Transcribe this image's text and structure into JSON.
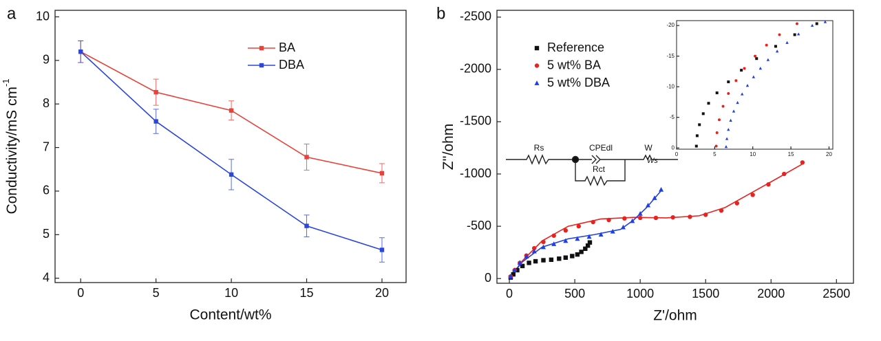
{
  "chart_data": [
    {
      "type": "line",
      "panel_label": "a",
      "xlabel": "Content/wt%",
      "ylabel": "Conductivity/mS cm",
      "ylabel_sup": "-1",
      "x": [
        0,
        5,
        10,
        15,
        20
      ],
      "series": [
        {
          "name": "BA",
          "color": "#e8423a",
          "marker": "square",
          "values": [
            9.2,
            8.27,
            7.85,
            6.78,
            6.41
          ],
          "errors": [
            0.25,
            0.3,
            0.22,
            0.3,
            0.22
          ]
        },
        {
          "name": "DBA",
          "color": "#2b47d8",
          "marker": "square",
          "values": [
            9.2,
            7.6,
            6.38,
            5.2,
            4.65
          ],
          "errors": [
            0.25,
            0.28,
            0.35,
            0.25,
            0.28
          ]
        }
      ],
      "xlim": [
        -1.7,
        21.6
      ],
      "xticks": [
        0,
        5,
        10,
        15,
        20
      ],
      "ylim": [
        3.9,
        10.15
      ],
      "yticks": [
        4,
        5,
        6,
        7,
        8,
        9,
        10
      ],
      "legend": "upper right"
    },
    {
      "type": "scatter",
      "panel_label": "b",
      "xlabel": "Z'/ohm",
      "ylabel": "Z''/ohm",
      "series": [
        {
          "name": "Reference",
          "color": "#111111",
          "marker": "square",
          "x": [
            10,
            30,
            60,
            100,
            150,
            200,
            260,
            320,
            380,
            430,
            480,
            520,
            550,
            580,
            600,
            615
          ],
          "values": [
            -10,
            -40,
            -80,
            -120,
            -150,
            -165,
            -175,
            -180,
            -190,
            -200,
            -215,
            -230,
            -255,
            -285,
            -315,
            -345
          ]
        },
        {
          "name": "5 wt% BA",
          "color": "#e8231f",
          "marker": "circle",
          "x": [
            10,
            40,
            80,
            130,
            190,
            260,
            340,
            430,
            530,
            640,
            760,
            880,
            1000,
            1120,
            1250,
            1380,
            1500,
            1620,
            1740,
            1860,
            1980,
            2100,
            2240
          ],
          "values": [
            -20,
            -80,
            -150,
            -220,
            -290,
            -350,
            -410,
            -460,
            -500,
            -540,
            -560,
            -575,
            -580,
            -580,
            -585,
            -590,
            -610,
            -650,
            -720,
            -800,
            -900,
            -1000,
            -1110
          ]
        },
        {
          "name": "5 wt% DBA",
          "color": "#1f3fe0",
          "marker": "triangle",
          "x": [
            10,
            40,
            80,
            130,
            190,
            260,
            340,
            430,
            520,
            610,
            700,
            790,
            870,
            940,
            1000,
            1060,
            1110,
            1160
          ],
          "values": [
            -20,
            -80,
            -150,
            -210,
            -260,
            -300,
            -330,
            -360,
            -380,
            -400,
            -420,
            -450,
            -490,
            -550,
            -620,
            -700,
            -770,
            -850
          ]
        }
      ],
      "fits": [
        {
          "color": "#e8231f",
          "x": [
            0,
            100,
            250,
            450,
            700,
            950,
            1200,
            1450,
            1650,
            1850,
            2050,
            2240
          ],
          "values": [
            0,
            -170,
            -360,
            -500,
            -570,
            -585,
            -580,
            -600,
            -680,
            -820,
            -960,
            -1095
          ]
        },
        {
          "color": "#1f3fe0",
          "x": [
            0,
            100,
            250,
            450,
            650,
            850,
            950,
            1050,
            1160
          ],
          "values": [
            0,
            -160,
            -300,
            -380,
            -420,
            -470,
            -560,
            -680,
            -840
          ]
        }
      ],
      "circuit_labels": [
        "Rs",
        "CPEdl",
        "Rct",
        "W",
        "Ws"
      ],
      "xlim": [
        -95,
        2630
      ],
      "xticks": [
        0,
        500,
        1000,
        1500,
        2000,
        2500
      ],
      "ylim": [
        45,
        -2565
      ],
      "yticks": [
        0,
        -500,
        -1000,
        -1500,
        -2000,
        -2500
      ],
      "legend": "upper left"
    },
    {
      "type": "scatter",
      "series": [
        {
          "color": "#111111",
          "marker": "square",
          "x": [
            2.6,
            2.7,
            3.0,
            3.5,
            4.2,
            5.3,
            6.8,
            8.5,
            10.5,
            13,
            15.5,
            18.4
          ],
          "values": [
            -0.3,
            -2,
            -3.8,
            -5.6,
            -7.3,
            -9,
            -10.8,
            -12.7,
            -14.6,
            -16.6,
            -18.5,
            -20.3
          ]
        },
        {
          "color": "#e8231f",
          "marker": "circle",
          "x": [
            5.2,
            5.3,
            5.6,
            6.1,
            6.8,
            7.8,
            8.9,
            10.3,
            11.8,
            13.5,
            15.8
          ],
          "values": [
            -0.3,
            -2.5,
            -4.6,
            -6.8,
            -8.9,
            -11,
            -13,
            -15,
            -16.8,
            -18.5,
            -20.3
          ]
        },
        {
          "color": "#1f3fe0",
          "marker": "triangle",
          "x": [
            6.5,
            6.6,
            6.8,
            7.1,
            7.5,
            8,
            8.6,
            9.3,
            10.1,
            11,
            12,
            13.2,
            14.5,
            16,
            17.8,
            19.5
          ],
          "values": [
            -0.2,
            -1.5,
            -3,
            -4.5,
            -6,
            -7.4,
            -8.8,
            -10.2,
            -11.6,
            -13,
            -14.4,
            -15.8,
            -17.2,
            -18.6,
            -20,
            -20.6
          ]
        }
      ],
      "xlim": [
        0,
        20.5
      ],
      "xticks": [
        0,
        5,
        10,
        15,
        20
      ],
      "ylim": [
        0.2,
        -20.8
      ],
      "yticks": [
        0,
        -5,
        -10,
        -15,
        -20
      ]
    }
  ]
}
